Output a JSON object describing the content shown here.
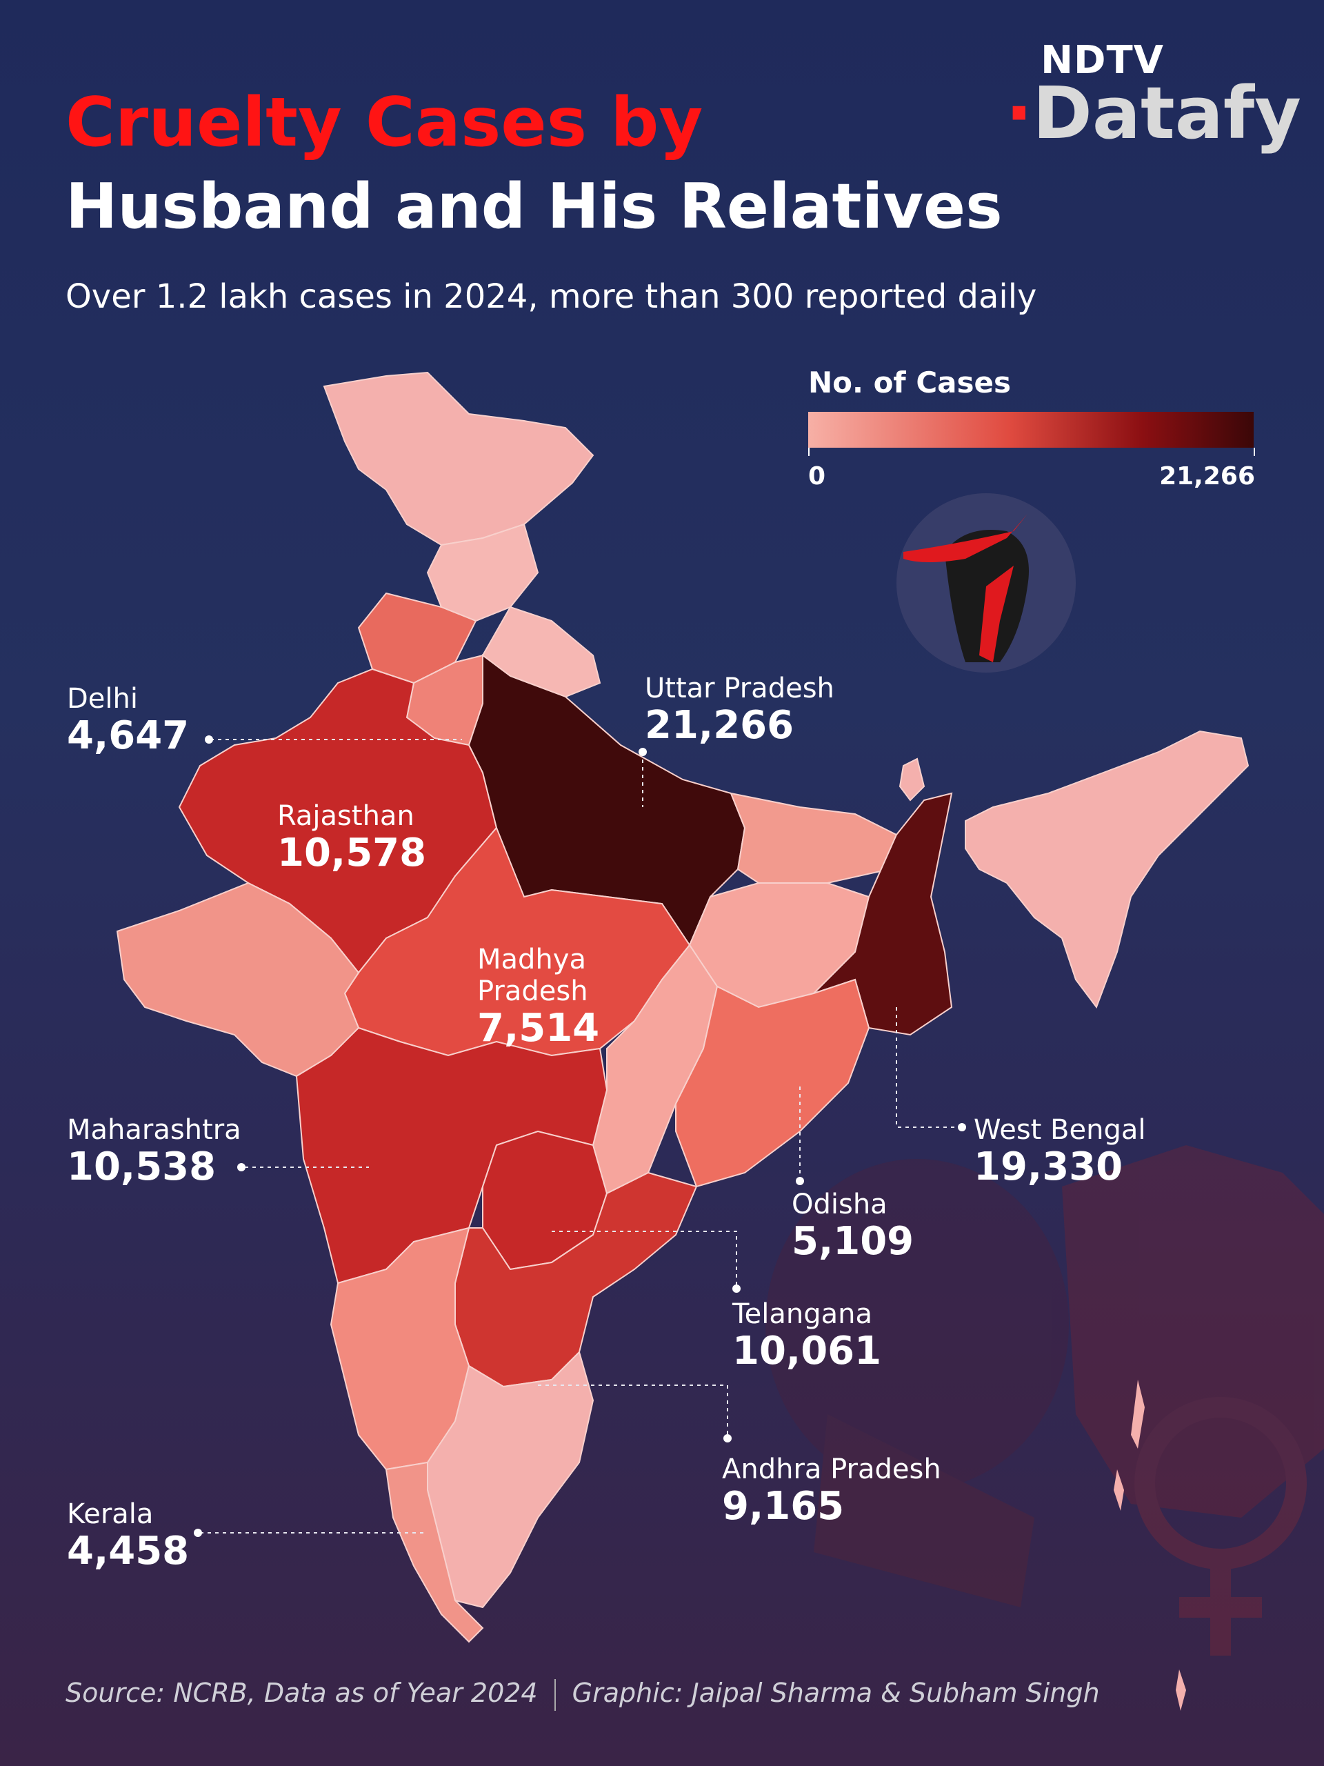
{
  "logo": {
    "top": "NDTV",
    "bottom_main": "Datafy",
    "dot": "·"
  },
  "title": {
    "line1": "Cruelty Cases by",
    "line2": "Husband and His Relatives"
  },
  "subtitle": "Over 1.2 lakh cases in 2024, more than 300 reported daily",
  "legend": {
    "title": "No. of Cases",
    "min": "0",
    "max": "21,266"
  },
  "colors": {
    "title_red": "#ff1414",
    "scale_low": "#f7b0a6",
    "scale_high": "#3b0708",
    "background": "#1f2a5b"
  },
  "labels": [
    {
      "name": "Delhi",
      "value": "4,647"
    },
    {
      "name": "Uttar Pradesh",
      "value": "21,266"
    },
    {
      "name": "Rajasthan",
      "value": "10,578"
    },
    {
      "name": "Madhya Pradesh",
      "name_lines": [
        "Madhya",
        "Pradesh"
      ],
      "value": "7,514"
    },
    {
      "name": "Maharashtra",
      "value": "10,538"
    },
    {
      "name": "West Bengal",
      "value": "19,330"
    },
    {
      "name": "Odisha",
      "value": "5,109"
    },
    {
      "name": "Telangana",
      "value": "10,061"
    },
    {
      "name": "Andhra Pradesh",
      "value": "9,165"
    },
    {
      "name": "Kerala",
      "value": "4,458"
    }
  ],
  "source": {
    "left": "Source: NCRB, Data as of Year 2024",
    "right": "Graphic: Jaipal Sharma & Subham Singh"
  },
  "icons": {
    "illustration": "woman-being-grabbed-illustration",
    "background": "hand-and-female-symbol-background"
  }
}
